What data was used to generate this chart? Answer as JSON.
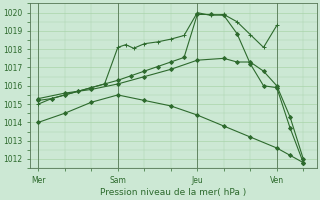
{
  "background_color": "#cce8d4",
  "grid_color": "#aad4aa",
  "line_color": "#2d6a2d",
  "vline_color": "#557755",
  "xlabel": "Pression niveau de la mer( hPa )",
  "ylim": [
    1011.5,
    1020.5
  ],
  "yticks": [
    1012,
    1013,
    1014,
    1015,
    1016,
    1017,
    1018,
    1019,
    1020
  ],
  "xtick_labels": [
    "Mer",
    "Sam",
    "Jeu",
    "Ven"
  ],
  "xtick_positions": [
    0,
    3,
    6,
    9
  ],
  "xlim": [
    -0.3,
    10.5
  ],
  "lines": [
    {
      "x": [
        0,
        0.5,
        1,
        1.5,
        2,
        2.5,
        3,
        3.3,
        3.6,
        4,
        4.5,
        5,
        5.5,
        6,
        6.5,
        7,
        7.5,
        8,
        8.5,
        9
      ],
      "y": [
        1015.0,
        1015.3,
        1015.5,
        1015.7,
        1015.9,
        1016.1,
        1018.1,
        1018.25,
        1018.05,
        1018.3,
        1018.4,
        1018.55,
        1018.75,
        1020.0,
        1019.85,
        1019.9,
        1019.5,
        1018.8,
        1018.1,
        1019.3
      ],
      "marker": "+"
    },
    {
      "x": [
        0,
        0.5,
        1,
        1.5,
        2,
        2.5,
        3,
        3.5,
        4,
        4.5,
        5,
        5.5,
        6,
        6.5,
        7,
        7.5,
        8,
        8.5,
        9,
        9.5,
        10
      ],
      "y": [
        1015.2,
        1015.3,
        1015.5,
        1015.7,
        1015.9,
        1016.1,
        1016.3,
        1016.55,
        1016.8,
        1017.05,
        1017.3,
        1017.55,
        1019.9,
        1019.9,
        1019.85,
        1018.85,
        1017.2,
        1016.0,
        1015.9,
        1013.7,
        1011.8
      ],
      "marker": "D"
    },
    {
      "x": [
        0,
        1,
        2,
        3,
        4,
        5,
        6,
        7,
        7.5,
        8,
        8.5,
        9,
        9.5,
        10
      ],
      "y": [
        1015.3,
        1015.6,
        1015.8,
        1016.1,
        1016.5,
        1016.9,
        1017.4,
        1017.5,
        1017.3,
        1017.3,
        1016.8,
        1016.0,
        1014.3,
        1012.0
      ],
      "marker": "D"
    },
    {
      "x": [
        0,
        1,
        2,
        3,
        4,
        5,
        6,
        7,
        8,
        9,
        9.5,
        10
      ],
      "y": [
        1014.0,
        1014.5,
        1015.1,
        1015.5,
        1015.2,
        1014.9,
        1014.4,
        1013.8,
        1013.2,
        1012.6,
        1012.2,
        1011.8
      ],
      "marker": "D"
    }
  ],
  "vlines_x": [
    0,
    3,
    6,
    9
  ],
  "tick_fontsize": 5.5,
  "xlabel_fontsize": 6.5,
  "tick_color": "#2d6a2d"
}
